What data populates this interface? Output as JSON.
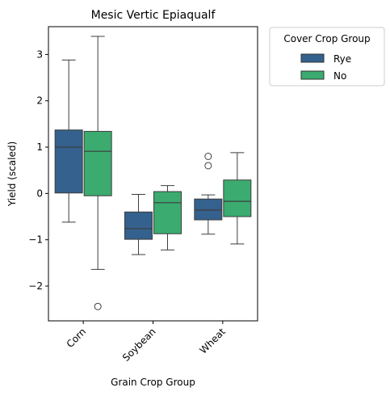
{
  "chart_data": {
    "type": "box",
    "title": "Mesic Vertic Epiaqualf",
    "xlabel": "Grain Crop Group",
    "ylabel": "Yield (scaled)",
    "categories": [
      "Corn",
      "Soybean",
      "Wheat"
    ],
    "ylim": [
      -2.75,
      3.6
    ],
    "yticks": [
      -2,
      -1,
      0,
      1,
      2,
      3
    ],
    "ytick_labels": [
      "−2",
      "−1",
      "0",
      "1",
      "2",
      "3"
    ],
    "grid": false,
    "legend": {
      "title": "Cover Crop Group",
      "placement": "outside-top-right"
    },
    "series": [
      {
        "name": "Rye",
        "color": "#34618d",
        "boxes": [
          {
            "category": "Corn",
            "whisker_low": -0.62,
            "q1": 0.01,
            "median": 1.0,
            "q3": 1.37,
            "whisker_high": 2.88,
            "outliers": []
          },
          {
            "category": "Soybean",
            "whisker_low": -1.32,
            "q1": -0.99,
            "median": -0.76,
            "q3": -0.4,
            "whisker_high": -0.02,
            "outliers": []
          },
          {
            "category": "Wheat",
            "whisker_low": -0.88,
            "q1": -0.57,
            "median": -0.36,
            "q3": -0.12,
            "whisker_high": -0.03,
            "outliers": [
              0.6,
              0.8
            ]
          }
        ]
      },
      {
        "name": "No",
        "color": "#3bab6f",
        "boxes": [
          {
            "category": "Corn",
            "whisker_low": -1.64,
            "q1": -0.05,
            "median": 0.91,
            "q3": 1.34,
            "whisker_high": 3.39,
            "outliers": [
              -2.44
            ]
          },
          {
            "category": "Soybean",
            "whisker_low": -1.22,
            "q1": -0.87,
            "median": -0.2,
            "q3": 0.04,
            "whisker_high": 0.17,
            "outliers": []
          },
          {
            "category": "Wheat",
            "whisker_low": -1.09,
            "q1": -0.5,
            "median": -0.17,
            "q3": 0.29,
            "whisker_high": 0.88,
            "outliers": []
          }
        ]
      }
    ]
  }
}
